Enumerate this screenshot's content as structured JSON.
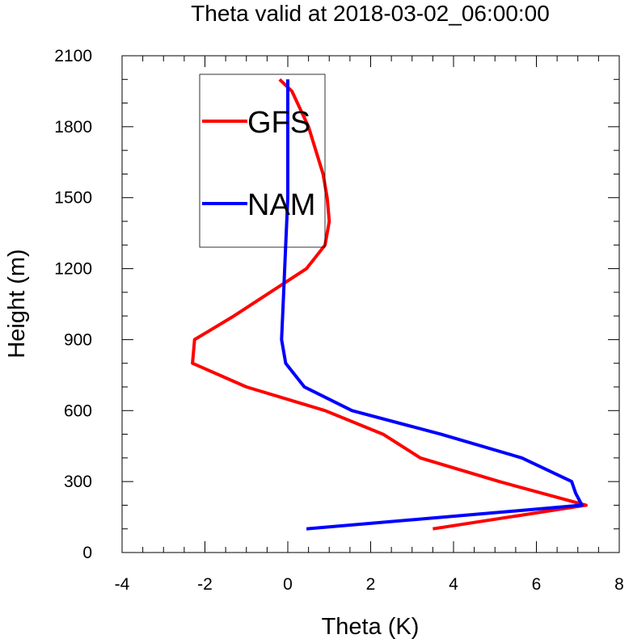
{
  "chart_data": {
    "type": "line",
    "title": "Theta valid at 2018-03-02_06:00:00",
    "xlabel": "Theta (K)",
    "ylabel": "Height (m)",
    "xlim": [
      -4,
      8
    ],
    "ylim": [
      0,
      2100
    ],
    "x_ticks": [
      "-4",
      "-2",
      "0",
      "2",
      "4",
      "6",
      "8"
    ],
    "y_ticks": [
      "0",
      "300",
      "600",
      "900",
      "1200",
      "1500",
      "1800",
      "2100"
    ],
    "grid": false,
    "legend_position": "top-left",
    "series": [
      {
        "name": "GFS",
        "color": "#ff0000",
        "x": [
          3.5,
          7.2,
          5.1,
          3.2,
          2.3,
          0.9,
          -1.0,
          -2.3,
          -2.25,
          -1.3,
          0.45,
          0.9,
          1.0,
          0.95,
          0.85,
          0.5,
          0.1,
          -0.2
        ],
        "y": [
          100,
          200,
          300,
          400,
          500,
          600,
          700,
          800,
          900,
          1000,
          1200,
          1300,
          1400,
          1500,
          1600,
          1800,
          1950,
          2000
        ]
      },
      {
        "name": "NAM",
        "color": "#0000ff",
        "x": [
          0.45,
          7.1,
          6.95,
          6.85,
          5.65,
          3.7,
          1.55,
          0.4,
          -0.05,
          -0.15,
          -0.1,
          -0.05,
          0.0,
          0.0,
          0.0,
          0.0
        ],
        "y": [
          100,
          200,
          250,
          300,
          400,
          500,
          600,
          700,
          800,
          900,
          1100,
          1300,
          1500,
          1700,
          1900,
          2000
        ]
      }
    ]
  }
}
